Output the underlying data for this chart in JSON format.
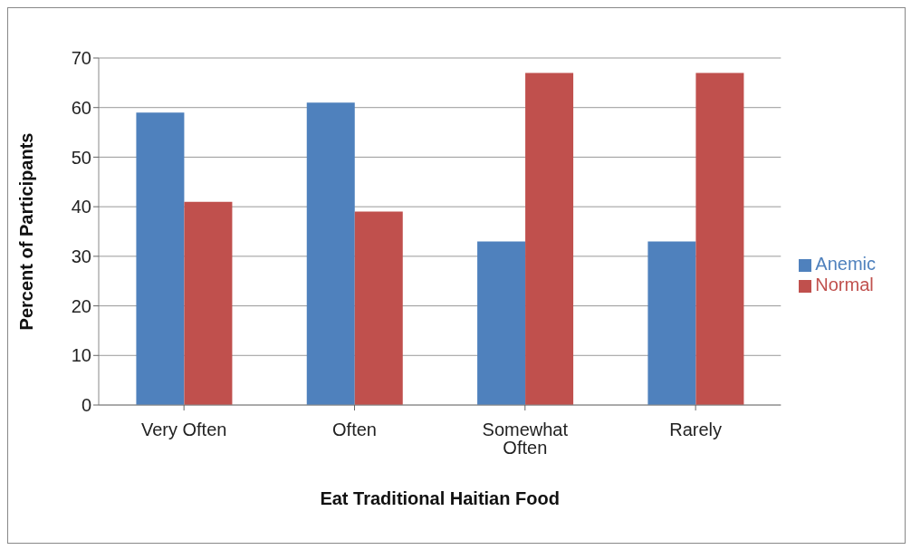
{
  "chart_data": {
    "type": "bar",
    "xlabel": "Eat Traditional Haitian Food",
    "ylabel": "Percent of Participants",
    "categories": [
      "Very Often",
      "Often",
      "Somewhat Often",
      "Rarely"
    ],
    "series": [
      {
        "name": "Anemic",
        "color": "#4f81bd",
        "values": [
          59,
          61,
          33,
          33
        ]
      },
      {
        "name": "Normal",
        "color": "#c0504d",
        "values": [
          41,
          39,
          67,
          67
        ]
      }
    ],
    "ylim": [
      0,
      70
    ],
    "yticks": [
      0,
      10,
      20,
      30,
      40,
      50,
      60,
      70
    ],
    "grid": "y",
    "legend": "right"
  }
}
